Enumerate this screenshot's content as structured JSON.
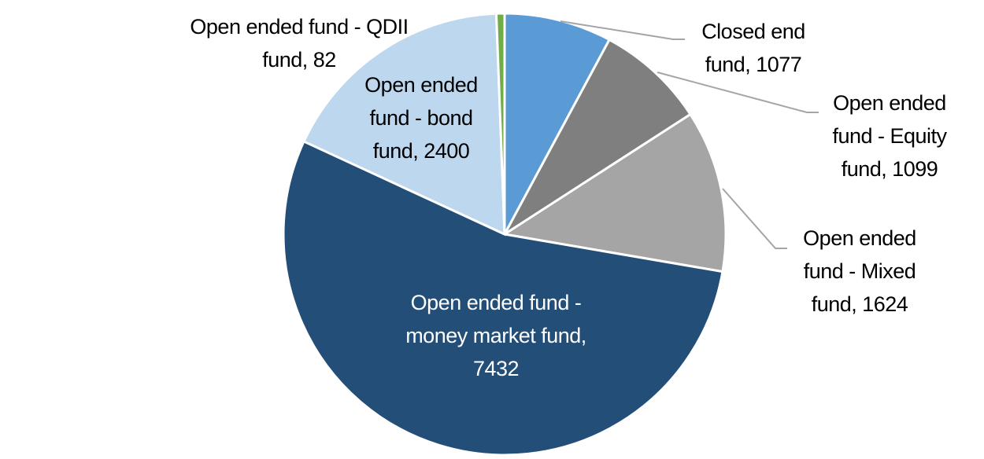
{
  "chart_data": {
    "type": "pie",
    "values": [
      1077,
      1099,
      1624,
      7432,
      2400,
      82
    ],
    "value_labels": [
      "Closed end fund, 1077",
      "Open ended fund - Equity fund, 1099",
      "Open ended fund - Mixed fund, 1624",
      "Open ended fund - money market fund, 7432",
      "Open ended fund - bond fund, 2400",
      "Open ended fund - QDII fund, 82"
    ],
    "colors": [
      "#5b9bd5",
      "#7f7f7f",
      "#a5a5a5",
      "#234e78",
      "#bdd7ee",
      "#70ad47"
    ]
  }
}
